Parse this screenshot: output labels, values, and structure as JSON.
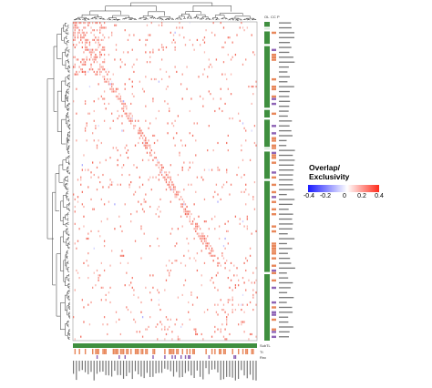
{
  "chart_data": {
    "type": "heatmap",
    "title": "",
    "legend": {
      "title_line1": "Overlap/",
      "title_line2": "Exclusivity",
      "ticks": [
        "-0.4",
        "-0.2",
        "0",
        "0.2",
        "0.4"
      ],
      "range": [
        -0.4,
        0.4
      ],
      "colors": {
        "low": "#1a1aff",
        "mid": "#ffffff",
        "high": "#ff2a1a"
      },
      "placement": "right"
    },
    "annotation_tracks": {
      "right_labels": [
        "OL",
        "CC",
        "P"
      ],
      "bottom_labels": [
        "SubTL",
        "Tt",
        "Rnc"
      ]
    },
    "track_colors": {
      "green": "#3f8f3f",
      "orange": "#e8875a",
      "purple": "#8e63b5",
      "salmon": "#f4a582"
    },
    "n_rows": 130,
    "n_cols": 125,
    "grid": false
  }
}
